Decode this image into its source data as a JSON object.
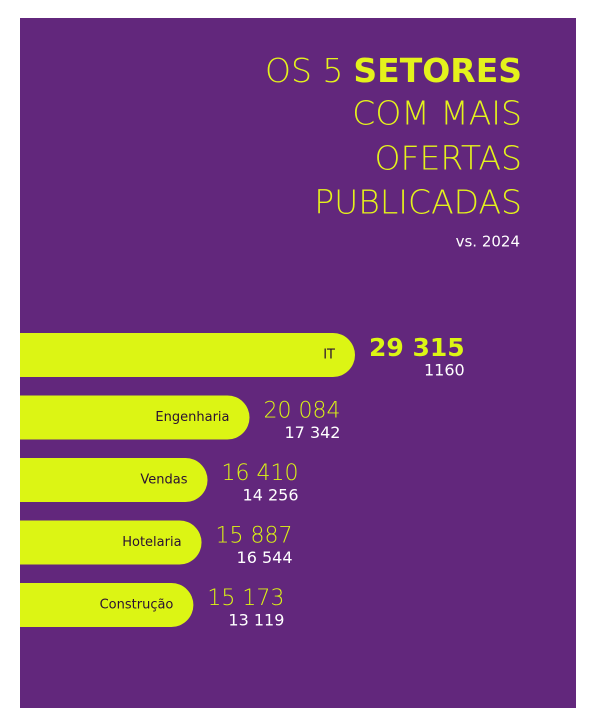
{
  "chart_data": {
    "type": "bar",
    "orientation": "horizontal",
    "title": {
      "prefix": "OS 5",
      "emphasis": "SETORES",
      "lines": [
        "COM MAIS",
        "OFERTAS",
        "PUBLICADAS"
      ]
    },
    "subtitle": "vs. 2024",
    "categories": [
      "IT",
      "Engenharia",
      "Vendas",
      "Hotelaria",
      "Construção"
    ],
    "values": [
      29315,
      20084,
      16410,
      15887,
      15173
    ],
    "value_labels": [
      "29 315",
      "20 084",
      "16 410",
      "15 887",
      "15 173"
    ],
    "previous_values": [
      1160,
      17342,
      14256,
      16544,
      13119
    ],
    "previous_value_labels": [
      "1160",
      "17 342",
      "14 256",
      "16 544",
      "13 119"
    ],
    "color": "#dcf514",
    "background": "#62277c"
  }
}
